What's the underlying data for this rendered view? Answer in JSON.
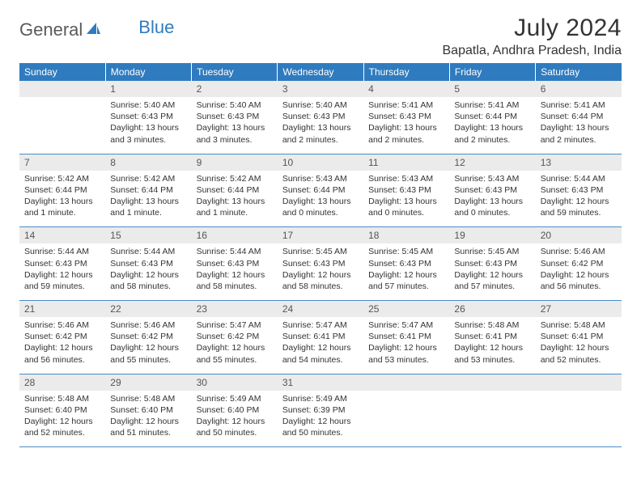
{
  "logo": {
    "text1": "General",
    "text2": "Blue"
  },
  "title": "July 2024",
  "location": "Bapatla, Andhra Pradesh, India",
  "weekdays": [
    "Sunday",
    "Monday",
    "Tuesday",
    "Wednesday",
    "Thursday",
    "Friday",
    "Saturday"
  ],
  "colors": {
    "header_bg": "#2f7bbf",
    "header_text": "#ffffff",
    "daynum_bg": "#ebebeb",
    "daynum_text": "#555555",
    "border": "#4a8cc7",
    "body_text": "#333333",
    "logo_gray": "#5a5a5a",
    "logo_blue": "#2f7bbf"
  },
  "weeks": [
    {
      "nums": [
        "",
        "1",
        "2",
        "3",
        "4",
        "5",
        "6"
      ],
      "cells": [
        {
          "sr": "",
          "ss": "",
          "dl1": "",
          "dl2": ""
        },
        {
          "sr": "Sunrise: 5:40 AM",
          "ss": "Sunset: 6:43 PM",
          "dl1": "Daylight: 13 hours",
          "dl2": "and 3 minutes."
        },
        {
          "sr": "Sunrise: 5:40 AM",
          "ss": "Sunset: 6:43 PM",
          "dl1": "Daylight: 13 hours",
          "dl2": "and 3 minutes."
        },
        {
          "sr": "Sunrise: 5:40 AM",
          "ss": "Sunset: 6:43 PM",
          "dl1": "Daylight: 13 hours",
          "dl2": "and 2 minutes."
        },
        {
          "sr": "Sunrise: 5:41 AM",
          "ss": "Sunset: 6:43 PM",
          "dl1": "Daylight: 13 hours",
          "dl2": "and 2 minutes."
        },
        {
          "sr": "Sunrise: 5:41 AM",
          "ss": "Sunset: 6:44 PM",
          "dl1": "Daylight: 13 hours",
          "dl2": "and 2 minutes."
        },
        {
          "sr": "Sunrise: 5:41 AM",
          "ss": "Sunset: 6:44 PM",
          "dl1": "Daylight: 13 hours",
          "dl2": "and 2 minutes."
        }
      ]
    },
    {
      "nums": [
        "7",
        "8",
        "9",
        "10",
        "11",
        "12",
        "13"
      ],
      "cells": [
        {
          "sr": "Sunrise: 5:42 AM",
          "ss": "Sunset: 6:44 PM",
          "dl1": "Daylight: 13 hours",
          "dl2": "and 1 minute."
        },
        {
          "sr": "Sunrise: 5:42 AM",
          "ss": "Sunset: 6:44 PM",
          "dl1": "Daylight: 13 hours",
          "dl2": "and 1 minute."
        },
        {
          "sr": "Sunrise: 5:42 AM",
          "ss": "Sunset: 6:44 PM",
          "dl1": "Daylight: 13 hours",
          "dl2": "and 1 minute."
        },
        {
          "sr": "Sunrise: 5:43 AM",
          "ss": "Sunset: 6:44 PM",
          "dl1": "Daylight: 13 hours",
          "dl2": "and 0 minutes."
        },
        {
          "sr": "Sunrise: 5:43 AM",
          "ss": "Sunset: 6:43 PM",
          "dl1": "Daylight: 13 hours",
          "dl2": "and 0 minutes."
        },
        {
          "sr": "Sunrise: 5:43 AM",
          "ss": "Sunset: 6:43 PM",
          "dl1": "Daylight: 13 hours",
          "dl2": "and 0 minutes."
        },
        {
          "sr": "Sunrise: 5:44 AM",
          "ss": "Sunset: 6:43 PM",
          "dl1": "Daylight: 12 hours",
          "dl2": "and 59 minutes."
        }
      ]
    },
    {
      "nums": [
        "14",
        "15",
        "16",
        "17",
        "18",
        "19",
        "20"
      ],
      "cells": [
        {
          "sr": "Sunrise: 5:44 AM",
          "ss": "Sunset: 6:43 PM",
          "dl1": "Daylight: 12 hours",
          "dl2": "and 59 minutes."
        },
        {
          "sr": "Sunrise: 5:44 AM",
          "ss": "Sunset: 6:43 PM",
          "dl1": "Daylight: 12 hours",
          "dl2": "and 58 minutes."
        },
        {
          "sr": "Sunrise: 5:44 AM",
          "ss": "Sunset: 6:43 PM",
          "dl1": "Daylight: 12 hours",
          "dl2": "and 58 minutes."
        },
        {
          "sr": "Sunrise: 5:45 AM",
          "ss": "Sunset: 6:43 PM",
          "dl1": "Daylight: 12 hours",
          "dl2": "and 58 minutes."
        },
        {
          "sr": "Sunrise: 5:45 AM",
          "ss": "Sunset: 6:43 PM",
          "dl1": "Daylight: 12 hours",
          "dl2": "and 57 minutes."
        },
        {
          "sr": "Sunrise: 5:45 AM",
          "ss": "Sunset: 6:43 PM",
          "dl1": "Daylight: 12 hours",
          "dl2": "and 57 minutes."
        },
        {
          "sr": "Sunrise: 5:46 AM",
          "ss": "Sunset: 6:42 PM",
          "dl1": "Daylight: 12 hours",
          "dl2": "and 56 minutes."
        }
      ]
    },
    {
      "nums": [
        "21",
        "22",
        "23",
        "24",
        "25",
        "26",
        "27"
      ],
      "cells": [
        {
          "sr": "Sunrise: 5:46 AM",
          "ss": "Sunset: 6:42 PM",
          "dl1": "Daylight: 12 hours",
          "dl2": "and 56 minutes."
        },
        {
          "sr": "Sunrise: 5:46 AM",
          "ss": "Sunset: 6:42 PM",
          "dl1": "Daylight: 12 hours",
          "dl2": "and 55 minutes."
        },
        {
          "sr": "Sunrise: 5:47 AM",
          "ss": "Sunset: 6:42 PM",
          "dl1": "Daylight: 12 hours",
          "dl2": "and 55 minutes."
        },
        {
          "sr": "Sunrise: 5:47 AM",
          "ss": "Sunset: 6:41 PM",
          "dl1": "Daylight: 12 hours",
          "dl2": "and 54 minutes."
        },
        {
          "sr": "Sunrise: 5:47 AM",
          "ss": "Sunset: 6:41 PM",
          "dl1": "Daylight: 12 hours",
          "dl2": "and 53 minutes."
        },
        {
          "sr": "Sunrise: 5:48 AM",
          "ss": "Sunset: 6:41 PM",
          "dl1": "Daylight: 12 hours",
          "dl2": "and 53 minutes."
        },
        {
          "sr": "Sunrise: 5:48 AM",
          "ss": "Sunset: 6:41 PM",
          "dl1": "Daylight: 12 hours",
          "dl2": "and 52 minutes."
        }
      ]
    },
    {
      "nums": [
        "28",
        "29",
        "30",
        "31",
        "",
        "",
        ""
      ],
      "cells": [
        {
          "sr": "Sunrise: 5:48 AM",
          "ss": "Sunset: 6:40 PM",
          "dl1": "Daylight: 12 hours",
          "dl2": "and 52 minutes."
        },
        {
          "sr": "Sunrise: 5:48 AM",
          "ss": "Sunset: 6:40 PM",
          "dl1": "Daylight: 12 hours",
          "dl2": "and 51 minutes."
        },
        {
          "sr": "Sunrise: 5:49 AM",
          "ss": "Sunset: 6:40 PM",
          "dl1": "Daylight: 12 hours",
          "dl2": "and 50 minutes."
        },
        {
          "sr": "Sunrise: 5:49 AM",
          "ss": "Sunset: 6:39 PM",
          "dl1": "Daylight: 12 hours",
          "dl2": "and 50 minutes."
        },
        {
          "sr": "",
          "ss": "",
          "dl1": "",
          "dl2": ""
        },
        {
          "sr": "",
          "ss": "",
          "dl1": "",
          "dl2": ""
        },
        {
          "sr": "",
          "ss": "",
          "dl1": "",
          "dl2": ""
        }
      ]
    }
  ]
}
